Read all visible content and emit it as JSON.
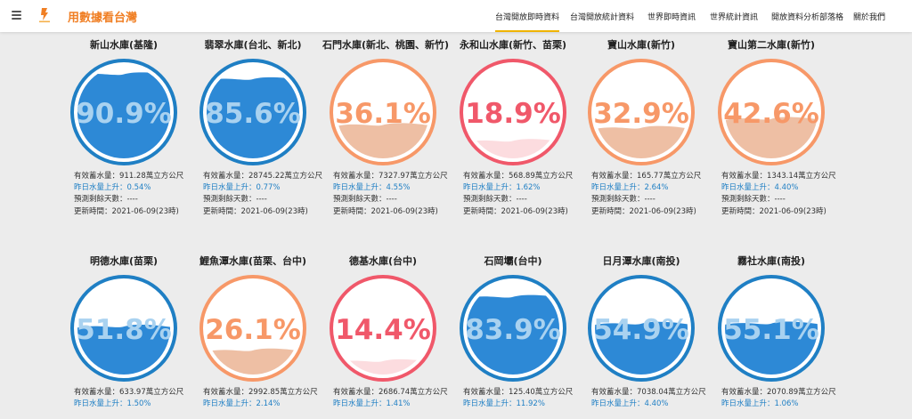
{
  "app": {
    "title": "用數據看台灣",
    "nav": [
      {
        "label": "台灣開放即時資料",
        "active": true
      },
      {
        "label": "台灣開放統計資料",
        "active": false
      },
      {
        "label": "世界即時資訊",
        "active": false
      },
      {
        "label": "世界統計資訊",
        "active": false
      },
      {
        "label": "開放資料分析部落格",
        "active": false
      },
      {
        "label": "關於我們",
        "active": false
      }
    ]
  },
  "theme": {
    "high_color": "#1f7fc4",
    "high_fill": "#2d89d6",
    "mid_color": "#f79868",
    "mid_fill": "#eebfa4",
    "low_color": "#f0586a",
    "low_fill": "#fcdcdf",
    "text_blue": "#1f7fc4",
    "brand_orange": "#f07f24"
  },
  "reservoirs": [
    {
      "name": "新山水庫(基隆)",
      "percent": "90.9%",
      "level": 0.909,
      "status": "high",
      "storage": "有效蓄水量：911.28萬立方公尺",
      "change": "昨日水量上升：0.54%",
      "days": "預測剩餘天數：----",
      "updated": "更新時間：2021-06-09(23時)"
    },
    {
      "name": "翡翠水庫(台北、新北)",
      "percent": "85.6%",
      "level": 0.856,
      "status": "high",
      "storage": "有效蓄水量：28745.22萬立方公尺",
      "change": "昨日水量上升：0.77%",
      "days": "預測剩餘天數：----",
      "updated": "更新時間：2021-06-09(23時)"
    },
    {
      "name": "石門水庫(新北、桃園、新竹)",
      "percent": "36.1%",
      "level": 0.361,
      "status": "mid",
      "storage": "有效蓄水量：7327.97萬立方公尺",
      "change": "昨日水量上升：4.55%",
      "days": "預測剩餘天數：----",
      "updated": "更新時間：2021-06-09(23時)"
    },
    {
      "name": "永和山水庫(新竹、苗栗)",
      "percent": "18.9%",
      "level": 0.189,
      "status": "low",
      "storage": "有效蓄水量：568.89萬立方公尺",
      "change": "昨日水量上升：1.62%",
      "days": "預測剩餘天數：----",
      "updated": "更新時間：2021-06-09(23時)"
    },
    {
      "name": "寶山水庫(新竹)",
      "percent": "32.9%",
      "level": 0.329,
      "status": "mid",
      "storage": "有效蓄水量：165.77萬立方公尺",
      "change": "昨日水量上升：2.64%",
      "days": "預測剩餘天數：----",
      "updated": "更新時間：2021-06-09(23時)"
    },
    {
      "name": "寶山第二水庫(新竹)",
      "percent": "42.6%",
      "level": 0.426,
      "status": "mid",
      "storage": "有效蓄水量：1343.14萬立方公尺",
      "change": "昨日水量上升：4.40%",
      "days": "預測剩餘天數：----",
      "updated": "更新時間：2021-06-09(23時)"
    },
    {
      "name": "明德水庫(苗栗)",
      "percent": "51.8%",
      "level": 0.518,
      "status": "high",
      "storage": "有效蓄水量：633.97萬立方公尺",
      "change": "昨日水量上升：1.50%"
    },
    {
      "name": "鯉魚潭水庫(苗栗、台中)",
      "percent": "26.1%",
      "level": 0.261,
      "status": "mid",
      "storage": "有效蓄水量：2992.85萬立方公尺",
      "change": "昨日水量上升：2.14%"
    },
    {
      "name": "德基水庫(台中)",
      "percent": "14.4%",
      "level": 0.144,
      "status": "low",
      "storage": "有效蓄水量：2686.74萬立方公尺",
      "change": "昨日水量上升：1.41%"
    },
    {
      "name": "石岡壩(台中)",
      "percent": "83.9%",
      "level": 0.839,
      "status": "high",
      "storage": "有效蓄水量：125.40萬立方公尺",
      "change": "昨日水量上升：11.92%"
    },
    {
      "name": "日月潭水庫(南投)",
      "percent": "54.9%",
      "level": 0.549,
      "status": "high",
      "storage": "有效蓄水量：7038.04萬立方公尺",
      "change": "昨日水量上升：4.40%"
    },
    {
      "name": "霧社水庫(南投)",
      "percent": "55.1%",
      "level": 0.551,
      "status": "high",
      "storage": "有效蓄水量：2070.89萬立方公尺",
      "change": "昨日水量上升：1.06%"
    }
  ]
}
